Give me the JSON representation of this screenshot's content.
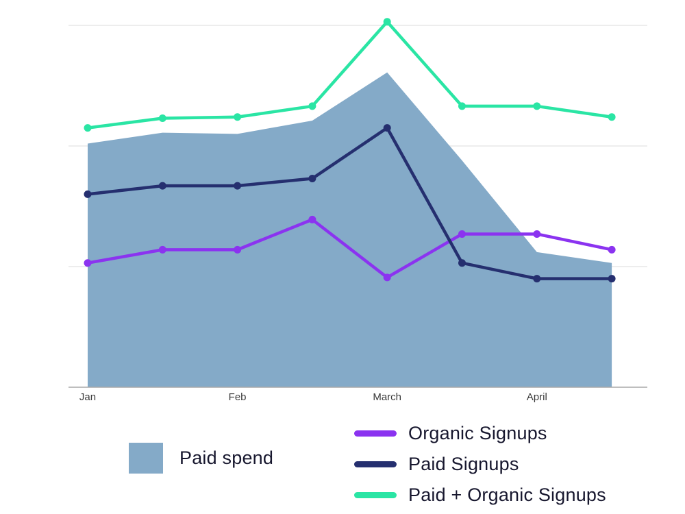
{
  "chart_data": {
    "type": "area+line",
    "categories": [
      "Jan",
      "",
      "Feb",
      "",
      "March",
      "",
      "April",
      ""
    ],
    "x_axis_labels": [
      "Jan",
      "Feb",
      "March",
      "April"
    ],
    "series": [
      {
        "name": "Paid spend",
        "type": "area",
        "color": "#84aac8",
        "values": [
          202,
          211,
          210,
          221,
          261,
          188,
          112,
          103
        ]
      },
      {
        "name": "Organic Signups",
        "type": "line",
        "color": "#8b33f0",
        "values": [
          103,
          114,
          114,
          139,
          91,
          127,
          127,
          114
        ]
      },
      {
        "name": "Paid Signups",
        "type": "line",
        "color": "#252f6f",
        "values": [
          160,
          167,
          167,
          173,
          215,
          103,
          90,
          90
        ]
      },
      {
        "name": "Paid + Organic Signups",
        "type": "line",
        "color": "#2ae5a4",
        "values": [
          215,
          223,
          224,
          233,
          303,
          233,
          233,
          224
        ]
      }
    ],
    "ylim": [
      0,
      320
    ],
    "gridline_values": [
      100,
      200,
      300
    ],
    "grid": true,
    "y_tick_labels_visible": false,
    "legend_position": "bottom",
    "colors": {
      "gridline": "#e7e7e7",
      "axis_line": "#a9a9a9",
      "axis_label_text": "#3a3a3a",
      "legend_text": "#17172e",
      "background": "#ffffff"
    }
  }
}
